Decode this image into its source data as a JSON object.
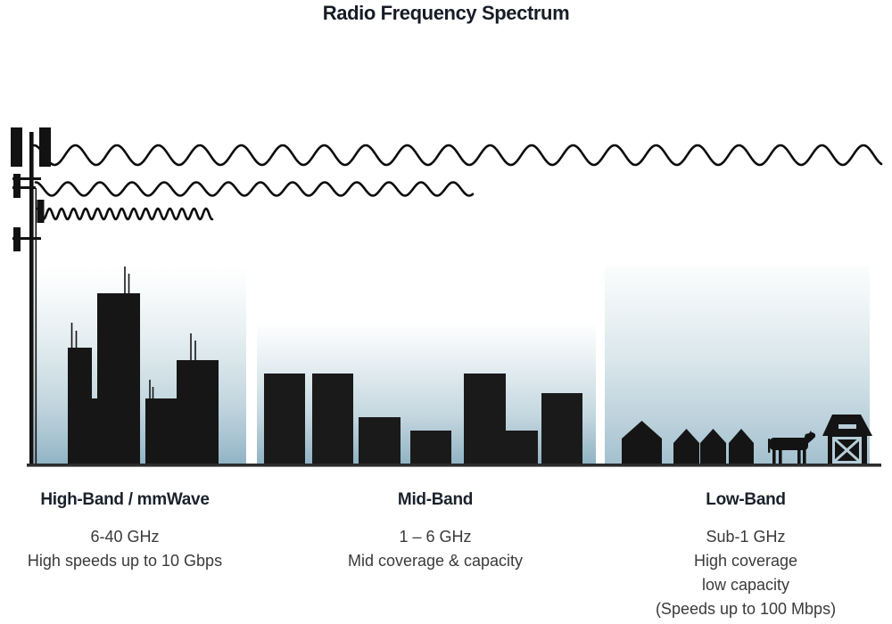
{
  "title": "Radio Frequency Spectrum",
  "bands": [
    {
      "id": "high-band",
      "heading": "High-Band / mmWave",
      "lines": [
        "6-40 GHz",
        "High speeds up to 10 Gbps"
      ]
    },
    {
      "id": "mid-band",
      "heading": "Mid-Band",
      "lines": [
        "1 – 6 GHz",
        "Mid coverage & capacity"
      ]
    },
    {
      "id": "low-band",
      "heading": "Low-Band",
      "lines": [
        "Sub-1 GHz",
        "High coverage",
        "low capacity",
        "(Speeds up to 100 Mbps)"
      ]
    }
  ],
  "icons": {
    "tower": "cell-tower-icon",
    "city": "city-skyline-icon",
    "suburb": "house-icons",
    "cow": "cow-icon",
    "barn": "barn-icon",
    "waves": [
      "low-band-wave",
      "mid-band-wave",
      "high-band-wave"
    ]
  },
  "colors": {
    "ink": "#141414",
    "heading_text": "#1b212b",
    "body_text": "#3a3a3a",
    "ground": "#2c2c2c",
    "sky_gradient_bottom": "#8fb2c3"
  }
}
